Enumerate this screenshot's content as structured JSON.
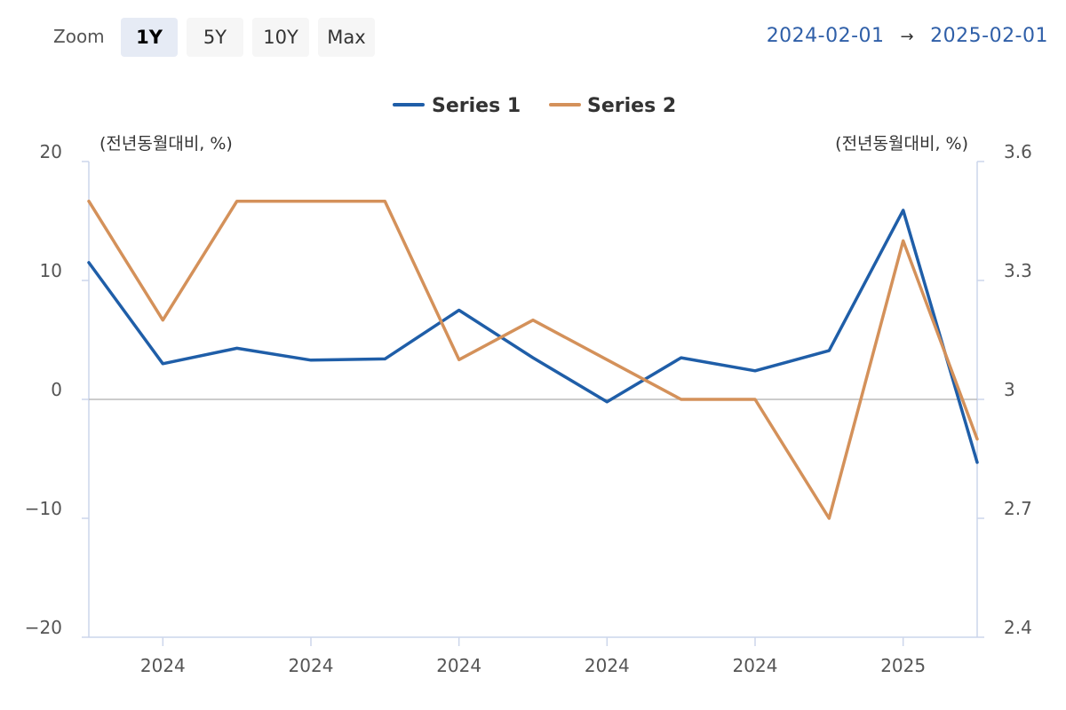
{
  "toolbar": {
    "zoom_label": "Zoom",
    "buttons": [
      "1Y",
      "5Y",
      "10Y",
      "Max"
    ],
    "active": "1Y"
  },
  "range": {
    "from": "2024-02-01",
    "arrow": "→",
    "to": "2025-02-01"
  },
  "colors": {
    "series_1": "#1f5ea8",
    "series_2": "#d4915a",
    "axis": "#ccd6eb",
    "zero_line": "#bbbbbb",
    "range_text": "#2f5fa8"
  },
  "chart_data": {
    "type": "line",
    "x": [
      "2024-02",
      "2024-03",
      "2024-04",
      "2024-05",
      "2024-06",
      "2024-07",
      "2024-08",
      "2024-09",
      "2024-10",
      "2024-11",
      "2024-12",
      "2025-01",
      "2025-02"
    ],
    "x_tick_labels": [
      "2024",
      "2024",
      "2024",
      "2024",
      "2024",
      "2025"
    ],
    "x_tick_positions": [
      "2024-03",
      "2024-05",
      "2024-07",
      "2024-09",
      "2024-11",
      "2025-01"
    ],
    "left_axis": {
      "label": "(전년동월대비, %)",
      "range": [
        -20,
        20
      ],
      "ticks": [
        20,
        10,
        0,
        -10,
        -20
      ],
      "tick_labels": [
        "20",
        "10",
        "0",
        "−10",
        "−20"
      ]
    },
    "right_axis": {
      "label": "(전년동월대비, %)",
      "range": [
        2.4,
        3.6
      ],
      "ticks": [
        3.6,
        3.3,
        3.0,
        2.7,
        2.4
      ],
      "tick_labels": [
        "3.6",
        "3.3",
        "3",
        "2.7",
        "2.4"
      ]
    },
    "series": [
      {
        "name": "Series 1",
        "axis": "left",
        "values": [
          11.5,
          3.0,
          4.3,
          3.3,
          3.4,
          7.5,
          3.5,
          -0.2,
          3.5,
          2.4,
          4.1,
          15.9,
          -5.3
        ]
      },
      {
        "name": "Series 2",
        "axis": "right",
        "values": [
          3.5,
          3.2,
          3.5,
          3.5,
          3.5,
          3.1,
          3.2,
          3.1,
          3.0,
          3.0,
          2.7,
          3.4,
          2.9
        ]
      }
    ],
    "legend_position": "top-center",
    "grid": false
  }
}
